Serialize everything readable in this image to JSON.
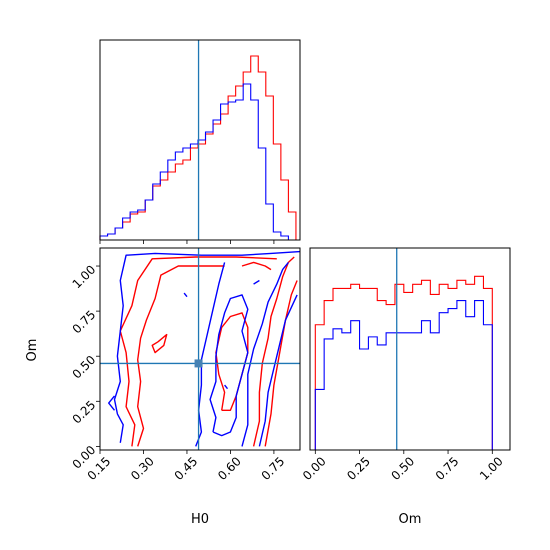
{
  "chart_data": {
    "type": "corner",
    "parameters": [
      "H0",
      "Om"
    ],
    "colors": {
      "sample_a": "#ff0000",
      "sample_b": "#0000ff",
      "truth": "#1f77b4"
    },
    "truth": {
      "H0": 0.49,
      "Om": 0.46
    },
    "panels": [
      {
        "id": "hist-H0",
        "type": "histogram",
        "xlim": [
          0.15,
          0.84
        ],
        "ylim": [
          0,
          1.0
        ],
        "bin_edges": [
          0.15,
          0.176,
          0.202,
          0.228,
          0.254,
          0.28,
          0.306,
          0.332,
          0.358,
          0.384,
          0.41,
          0.436,
          0.462,
          0.488,
          0.514,
          0.54,
          0.566,
          0.592,
          0.618,
          0.644,
          0.67,
          0.696,
          0.722,
          0.748,
          0.774,
          0.8,
          0.826
        ],
        "series": [
          {
            "color": "#ff0000",
            "values": [
              0.02,
              0.03,
              0.06,
              0.09,
              0.13,
              0.14,
              0.2,
              0.27,
              0.3,
              0.34,
              0.38,
              0.4,
              0.46,
              0.48,
              0.53,
              0.58,
              0.63,
              0.72,
              0.77,
              0.84,
              0.92,
              0.84,
              0.72,
              0.48,
              0.3,
              0.14
            ]
          },
          {
            "color": "#0000ff",
            "values": [
              0.02,
              0.03,
              0.06,
              0.11,
              0.14,
              0.15,
              0.2,
              0.28,
              0.34,
              0.4,
              0.44,
              0.46,
              0.48,
              0.5,
              0.54,
              0.6,
              0.68,
              0.69,
              0.7,
              0.78,
              0.7,
              0.46,
              0.18,
              0.04,
              0.02,
              0.0
            ]
          }
        ]
      },
      {
        "id": "hist-Om",
        "type": "histogram",
        "xlim": [
          -0.03,
          1.1
        ],
        "ylim": [
          0,
          1.0
        ],
        "bin_edges": [
          0.0,
          0.05,
          0.1,
          0.15,
          0.2,
          0.25,
          0.3,
          0.35,
          0.4,
          0.45,
          0.5,
          0.55,
          0.6,
          0.65,
          0.7,
          0.75,
          0.8,
          0.85,
          0.9,
          0.95,
          1.0
        ],
        "series": [
          {
            "color": "#ff0000",
            "values": [
              0.62,
              0.74,
              0.8,
              0.8,
              0.82,
              0.8,
              0.8,
              0.74,
              0.72,
              0.82,
              0.78,
              0.82,
              0.84,
              0.77,
              0.82,
              0.8,
              0.84,
              0.82,
              0.86,
              0.8
            ]
          },
          {
            "color": "#0000ff",
            "values": [
              0.3,
              0.55,
              0.6,
              0.58,
              0.64,
              0.5,
              0.56,
              0.52,
              0.58,
              0.58,
              0.58,
              0.58,
              0.64,
              0.58,
              0.68,
              0.7,
              0.74,
              0.66,
              0.74,
              0.62
            ]
          }
        ]
      },
      {
        "id": "contour-H0-Om",
        "type": "contour",
        "xlim": [
          0.15,
          0.84
        ],
        "ylim": [
          -0.02,
          1.1
        ],
        "series": [
          {
            "color": "#ff0000",
            "contours": [
              [
                [
                  0.26,
                  0.0
                ],
                [
                  0.27,
                  0.12
                ],
                [
                  0.24,
                  0.22
                ],
                [
                  0.25,
                  0.36
                ],
                [
                  0.24,
                  0.52
                ],
                [
                  0.22,
                  0.64
                ],
                [
                  0.26,
                  0.78
                ],
                [
                  0.28,
                  0.92
                ],
                [
                  0.33,
                  1.04
                ],
                [
                  0.48,
                  1.05
                ],
                [
                  0.62,
                  1.05
                ],
                [
                  0.76,
                  1.04
                ]
              ],
              [
                [
                  0.28,
                  0.0
                ],
                [
                  0.3,
                  0.1
                ],
                [
                  0.28,
                  0.22
                ],
                [
                  0.29,
                  0.36
                ],
                [
                  0.28,
                  0.48
                ],
                [
                  0.29,
                  0.6
                ],
                [
                  0.31,
                  0.7
                ],
                [
                  0.34,
                  0.82
                ],
                [
                  0.36,
                  0.95
                ],
                [
                  0.42,
                  1.0
                ],
                [
                  0.58,
                  1.0
                ]
              ],
              [
                [
                  0.35,
                  0.58
                ],
                [
                  0.38,
                  0.62
                ],
                [
                  0.37,
                  0.56
                ],
                [
                  0.34,
                  0.52
                ],
                [
                  0.33,
                  0.56
                ],
                [
                  0.35,
                  0.58
                ]
              ],
              [
                [
                  0.57,
                  0.2
                ],
                [
                  0.58,
                  0.3
                ],
                [
                  0.56,
                  0.4
                ],
                [
                  0.55,
                  0.52
                ],
                [
                  0.57,
                  0.66
                ],
                [
                  0.6,
                  0.72
                ],
                [
                  0.64,
                  0.74
                ],
                [
                  0.66,
                  0.66
                ],
                [
                  0.66,
                  0.52
                ],
                [
                  0.64,
                  0.4
                ],
                [
                  0.62,
                  0.28
                ],
                [
                  0.6,
                  0.2
                ],
                [
                  0.57,
                  0.2
                ]
              ],
              [
                [
                  0.68,
                  0.0
                ],
                [
                  0.7,
                  0.14
                ],
                [
                  0.7,
                  0.3
                ],
                [
                  0.71,
                  0.46
                ],
                [
                  0.73,
                  0.6
                ],
                [
                  0.74,
                  0.72
                ],
                [
                  0.76,
                  0.82
                ],
                [
                  0.78,
                  0.94
                ],
                [
                  0.8,
                  1.02
                ],
                [
                  0.82,
                  1.05
                ]
              ],
              [
                [
                  0.72,
                  0.0
                ],
                [
                  0.74,
                  0.18
                ],
                [
                  0.75,
                  0.34
                ],
                [
                  0.77,
                  0.52
                ],
                [
                  0.79,
                  0.7
                ],
                [
                  0.81,
                  0.84
                ],
                [
                  0.83,
                  0.92
                ]
              ],
              [
                [
                  0.64,
                  1.0
                ],
                [
                  0.68,
                  1.02
                ],
                [
                  0.72,
                  1.0
                ],
                [
                  0.74,
                  0.98
                ]
              ]
            ]
          },
          {
            "color": "#0000ff",
            "contours": [
              [
                [
                  0.22,
                  0.02
                ],
                [
                  0.23,
                  0.12
                ],
                [
                  0.21,
                  0.18
                ],
                [
                  0.2,
                  0.26
                ],
                [
                  0.22,
                  0.36
                ],
                [
                  0.21,
                  0.5
                ],
                [
                  0.22,
                  0.64
                ],
                [
                  0.23,
                  0.78
                ],
                [
                  0.22,
                  0.92
                ],
                [
                  0.24,
                  1.06
                ],
                [
                  0.34,
                  1.07
                ],
                [
                  0.5,
                  1.06
                ],
                [
                  0.64,
                  1.06
                ],
                [
                  0.74,
                  1.07
                ],
                [
                  0.84,
                  1.08
                ]
              ],
              [
                [
                  0.2,
                  0.28
                ],
                [
                  0.18,
                  0.24
                ],
                [
                  0.2,
                  0.2
                ]
              ],
              [
                [
                  0.48,
                  0.0
                ],
                [
                  0.5,
                  0.08
                ],
                [
                  0.49,
                  0.2
                ],
                [
                  0.5,
                  0.34
                ],
                [
                  0.5,
                  0.48
                ],
                [
                  0.52,
                  0.62
                ],
                [
                  0.54,
                  0.76
                ],
                [
                  0.56,
                  0.9
                ],
                [
                  0.58,
                  1.02
                ]
              ],
              [
                [
                  0.54,
                  0.08
                ],
                [
                  0.55,
                  0.16
                ],
                [
                  0.53,
                  0.26
                ],
                [
                  0.55,
                  0.36
                ],
                [
                  0.55,
                  0.5
                ],
                [
                  0.56,
                  0.62
                ],
                [
                  0.58,
                  0.74
                ],
                [
                  0.6,
                  0.82
                ],
                [
                  0.64,
                  0.84
                ],
                [
                  0.66,
                  0.76
                ],
                [
                  0.64,
                  0.64
                ],
                [
                  0.66,
                  0.52
                ],
                [
                  0.64,
                  0.4
                ],
                [
                  0.62,
                  0.28
                ],
                [
                  0.62,
                  0.16
                ],
                [
                  0.6,
                  0.08
                ],
                [
                  0.57,
                  0.06
                ],
                [
                  0.54,
                  0.08
                ]
              ],
              [
                [
                  0.64,
                  0.0
                ],
                [
                  0.66,
                  0.12
                ],
                [
                  0.66,
                  0.26
                ],
                [
                  0.66,
                  0.4
                ],
                [
                  0.68,
                  0.54
                ],
                [
                  0.71,
                  0.68
                ],
                [
                  0.73,
                  0.8
                ],
                [
                  0.76,
                  0.9
                ],
                [
                  0.78,
                  0.98
                ],
                [
                  0.8,
                  1.02
                ]
              ],
              [
                [
                  0.7,
                  0.0
                ],
                [
                  0.72,
                  0.14
                ],
                [
                  0.73,
                  0.3
                ],
                [
                  0.76,
                  0.5
                ],
                [
                  0.79,
                  0.7
                ],
                [
                  0.83,
                  0.84
                ]
              ],
              [
                [
                  0.58,
                  0.34
                ],
                [
                  0.59,
                  0.32
                ]
              ],
              [
                [
                  0.68,
                  0.9
                ],
                [
                  0.7,
                  0.92
                ]
              ],
              [
                [
                  0.44,
                  0.85
                ],
                [
                  0.45,
                  0.83
                ]
              ]
            ]
          }
        ]
      }
    ],
    "axes": {
      "H0": {
        "label": "H0",
        "ticks": [
          "0.15",
          "0.30",
          "0.45",
          "0.60",
          "0.75"
        ],
        "values": [
          0.15,
          0.3,
          0.45,
          0.6,
          0.75
        ]
      },
      "Om": {
        "label": "Om",
        "ticks": [
          "0.00",
          "0.25",
          "0.50",
          "0.75",
          "1.00"
        ],
        "values": [
          0.0,
          0.25,
          0.5,
          0.75,
          1.0
        ]
      }
    }
  }
}
